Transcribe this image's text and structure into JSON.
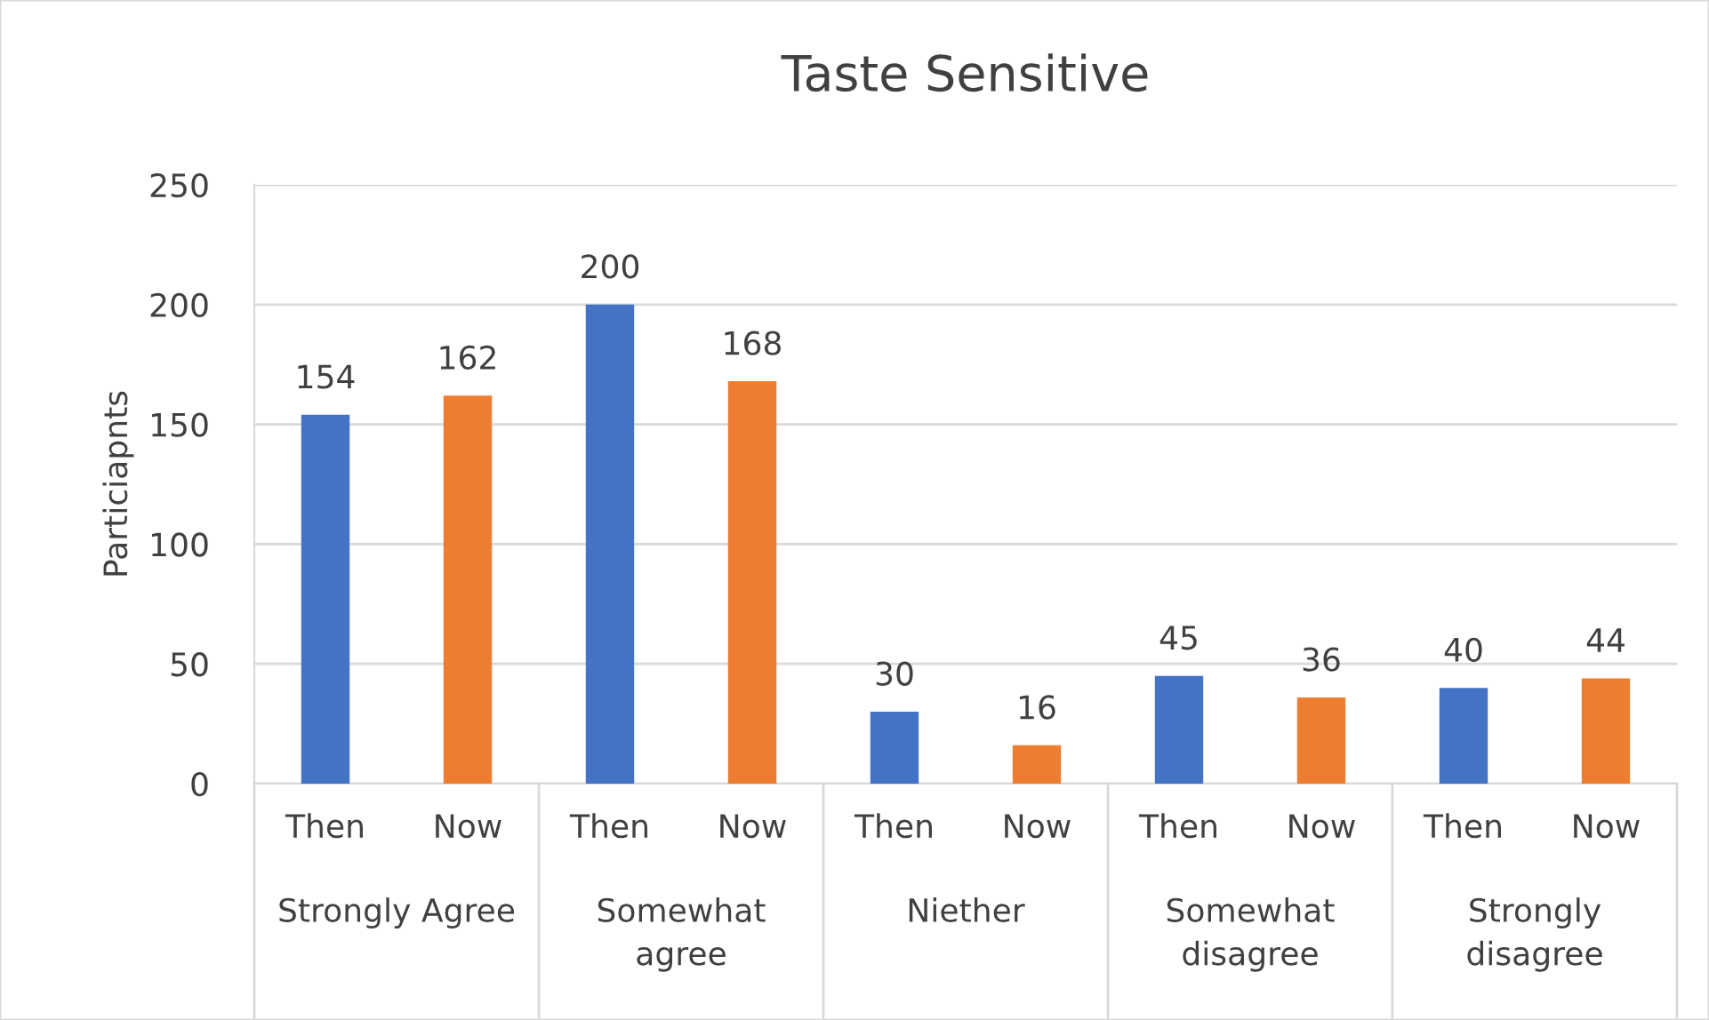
{
  "chart_data": {
    "type": "bar",
    "title": "Taste Sensitive",
    "ylabel": "Particiapnts",
    "categories": [
      "Then",
      "Now",
      "Then",
      "Now",
      "Then",
      "Now",
      "Then",
      "Now",
      "Then",
      "Now"
    ],
    "values": [
      154,
      162,
      200,
      168,
      30,
      16,
      45,
      36,
      40,
      44
    ],
    "colors": [
      "#4472c4",
      "#ed7d31",
      "#4472c4",
      "#ed7d31",
      "#4472c4",
      "#ed7d31",
      "#4472c4",
      "#ed7d31",
      "#4472c4",
      "#ed7d31"
    ],
    "annotations": [
      "Strongly Agree",
      "Somewhat agree",
      "Niether",
      "Somewhat disagree",
      "Strongly disagree"
    ],
    "ylim": [
      0,
      250
    ],
    "yticks": [
      0,
      50,
      100,
      150,
      200,
      250
    ],
    "grid": "y",
    "data_labels": true
  }
}
